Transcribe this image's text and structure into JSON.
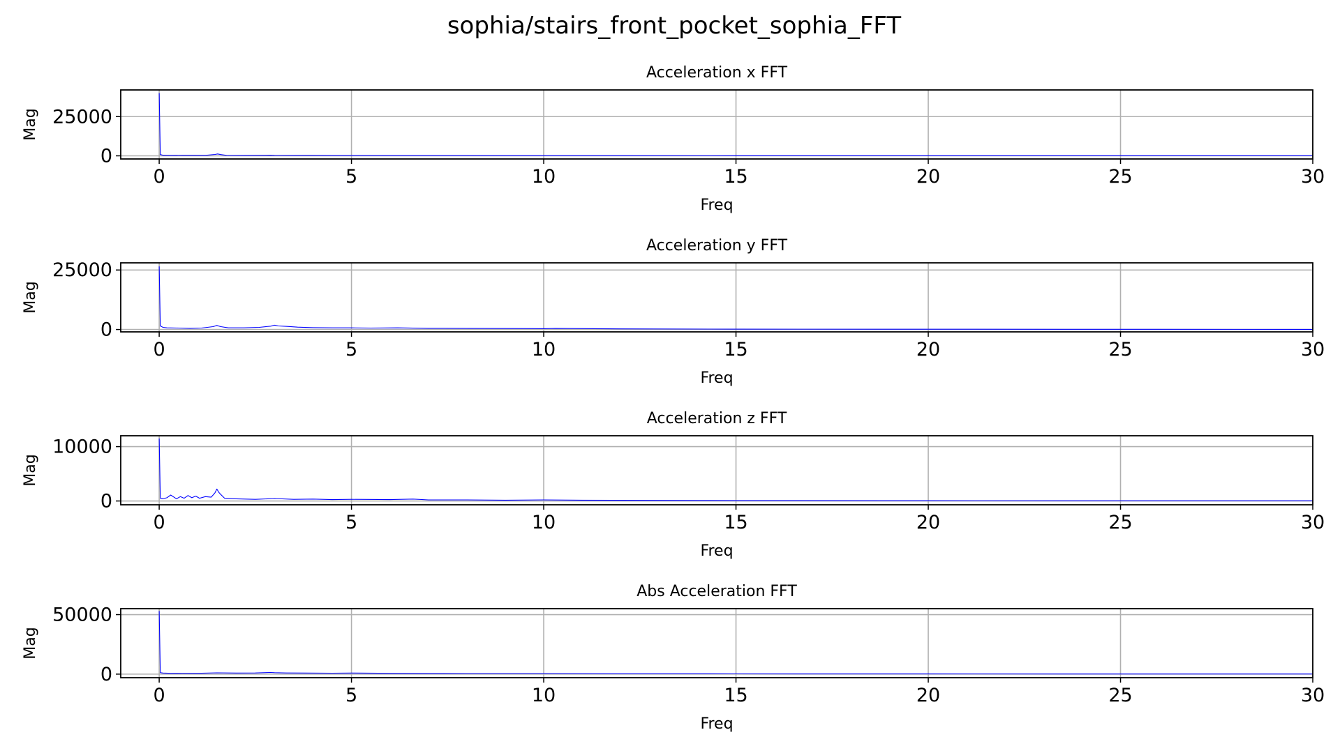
{
  "figure": {
    "title": "sophia/stairs_front_pocket_sophia_FFT"
  },
  "colors": {
    "line": "#0000ff",
    "grid": "#b0b0b0",
    "axes": "#000000",
    "background": "#ffffff"
  },
  "chart_data": [
    {
      "type": "line",
      "title": "Acceleration x FFT",
      "xlabel": "Freq",
      "ylabel": "Mag",
      "xlim": [
        -1,
        30
      ],
      "ylim": [
        -2000,
        42000
      ],
      "xticks": [
        0,
        5,
        10,
        15,
        20,
        25,
        30
      ],
      "yticks": [
        0,
        25000
      ],
      "grid": true,
      "legend": "none",
      "series": [
        {
          "x": [
            0,
            0.03,
            0.1,
            0.3,
            0.6,
            0.9,
            1.2,
            1.45,
            1.52,
            1.6,
            1.75,
            2.2,
            2.9,
            3.0,
            3.5,
            3.9,
            4.5,
            5,
            6,
            7,
            8,
            9,
            10,
            12,
            15,
            20,
            25,
            30
          ],
          "y": [
            40000,
            800,
            400,
            300,
            350,
            350,
            300,
            900,
            1200,
            800,
            300,
            250,
            400,
            300,
            250,
            300,
            200,
            200,
            150,
            150,
            120,
            100,
            100,
            80,
            60,
            50,
            40,
            30
          ]
        }
      ]
    },
    {
      "type": "line",
      "title": "Acceleration y FFT",
      "xlabel": "Freq",
      "ylabel": "Mag",
      "xlim": [
        -1,
        30
      ],
      "ylim": [
        -1000,
        28000
      ],
      "xticks": [
        0,
        5,
        10,
        15,
        20,
        25,
        30
      ],
      "yticks": [
        0,
        25000
      ],
      "grid": true,
      "legend": "none",
      "series": [
        {
          "x": [
            0,
            0.03,
            0.1,
            0.2,
            0.5,
            0.8,
            1.1,
            1.4,
            1.5,
            1.6,
            1.8,
            2.2,
            2.6,
            2.9,
            3.0,
            3.1,
            3.3,
            3.6,
            4.0,
            4.5,
            5,
            5.5,
            6.2,
            7,
            8,
            9,
            10,
            10.3,
            12,
            15,
            20,
            25,
            30
          ],
          "y": [
            26500,
            1500,
            900,
            700,
            600,
            500,
            600,
            1200,
            1700,
            1200,
            700,
            700,
            900,
            1400,
            1800,
            1500,
            1300,
            1000,
            800,
            700,
            700,
            600,
            700,
            500,
            450,
            400,
            350,
            450,
            250,
            150,
            100,
            80,
            60
          ]
        }
      ]
    },
    {
      "type": "line",
      "title": "Acceleration z FFT",
      "xlabel": "Freq",
      "ylabel": "Mag",
      "xlim": [
        -1,
        30
      ],
      "ylim": [
        -700,
        12000
      ],
      "xticks": [
        0,
        5,
        10,
        15,
        20,
        25,
        30
      ],
      "yticks": [
        0,
        10000
      ],
      "grid": true,
      "legend": "none",
      "series": [
        {
          "x": [
            0,
            0.03,
            0.1,
            0.2,
            0.3,
            0.45,
            0.55,
            0.65,
            0.75,
            0.85,
            0.95,
            1.05,
            1.2,
            1.35,
            1.45,
            1.5,
            1.55,
            1.6,
            1.7,
            2.0,
            2.5,
            3.0,
            3.5,
            4.0,
            4.5,
            5,
            6,
            6.6,
            7,
            8,
            9,
            10,
            11,
            12,
            14,
            15,
            20,
            25,
            30
          ],
          "y": [
            11500,
            500,
            400,
            600,
            1100,
            400,
            800,
            500,
            1000,
            600,
            900,
            500,
            800,
            700,
            1500,
            2200,
            1600,
            1200,
            500,
            400,
            300,
            450,
            300,
            350,
            250,
            300,
            250,
            350,
            200,
            200,
            150,
            200,
            150,
            120,
            100,
            80,
            60,
            50,
            40
          ]
        }
      ]
    },
    {
      "type": "line",
      "title": "Abs Acceleration FFT",
      "xlabel": "Freq",
      "ylabel": "Mag",
      "xlim": [
        -1,
        30
      ],
      "ylim": [
        -3000,
        55000
      ],
      "xticks": [
        0,
        5,
        10,
        15,
        20,
        25,
        30
      ],
      "yticks": [
        0,
        50000
      ],
      "grid": true,
      "legend": "none",
      "series": [
        {
          "x": [
            0,
            0.03,
            0.1,
            0.3,
            0.6,
            1.0,
            1.5,
            2.0,
            2.5,
            2.9,
            3.0,
            3.3,
            3.8,
            4.5,
            5,
            6,
            7,
            8,
            9,
            10,
            12,
            15,
            20,
            25,
            30
          ],
          "y": [
            53000,
            1200,
            900,
            700,
            800,
            700,
            1100,
            900,
            1000,
            1400,
            1200,
            1000,
            900,
            800,
            900,
            700,
            600,
            500,
            500,
            500,
            300,
            200,
            150,
            100,
            80
          ]
        }
      ]
    }
  ]
}
